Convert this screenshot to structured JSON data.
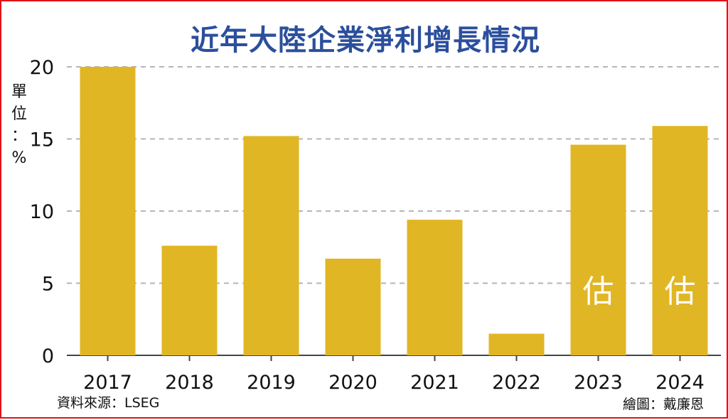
{
  "colors": {
    "bar": "#e1b624",
    "grid": "#b5b5b5",
    "title": "#2b4f9c",
    "border": "#e0121b",
    "estimate_label": "#ffffff"
  },
  "chart_data": {
    "type": "bar",
    "title": "近年大陸企業淨利增長情況",
    "ylabel": "單位：%",
    "xlabel": "",
    "categories": [
      "2017",
      "2018",
      "2019",
      "2020",
      "2021",
      "2022",
      "2023",
      "2024"
    ],
    "values": [
      20,
      7.6,
      15.2,
      6.7,
      9.4,
      1.5,
      14.6,
      15.9
    ],
    "estimated": [
      false,
      false,
      false,
      false,
      false,
      false,
      true,
      true
    ],
    "estimate_label": "估",
    "ylim": [
      0,
      20
    ],
    "yticks": [
      0,
      5,
      10,
      15,
      20
    ],
    "grid": true
  },
  "source": "資料來源：LSEG",
  "credit": "繪圖：戴廉恩"
}
